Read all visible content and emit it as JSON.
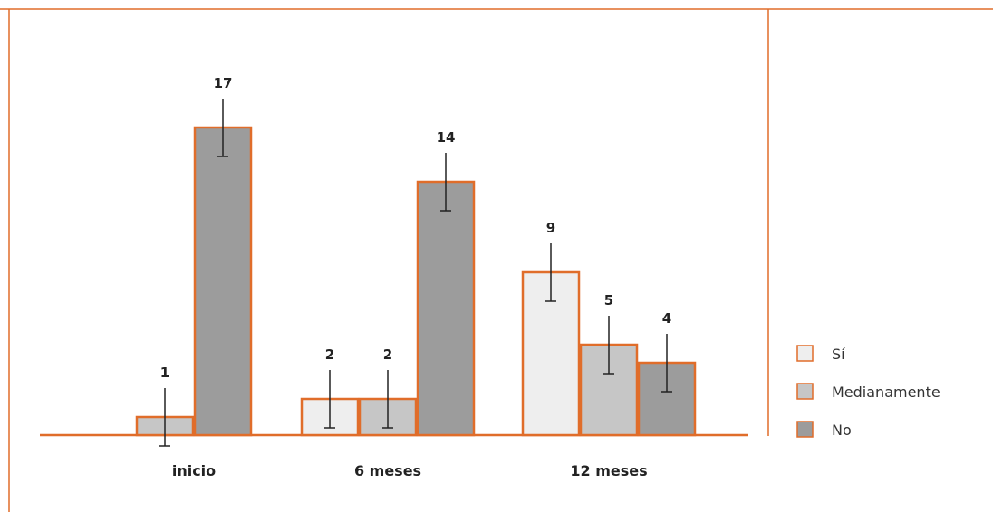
{
  "chart_data": {
    "type": "bar",
    "categories": [
      "inicio",
      "6 meses",
      "12 meses"
    ],
    "series": [
      {
        "name": "Sí",
        "values": [
          null,
          2,
          9
        ],
        "color": "#eeeeee"
      },
      {
        "name": "Medianamente",
        "values": [
          1,
          2,
          5
        ],
        "color": "#c6c6c6"
      },
      {
        "name": "No",
        "values": [
          17,
          14,
          4
        ],
        "color": "#9c9c9c"
      }
    ],
    "error_bars": true,
    "ylim": [
      0,
      18
    ],
    "legend": "right",
    "grid": false,
    "title": "",
    "xlabel": "",
    "ylabel": ""
  },
  "colors": {
    "border": "#e06d2a",
    "text": "#222222",
    "legend_text": "#333333"
  }
}
